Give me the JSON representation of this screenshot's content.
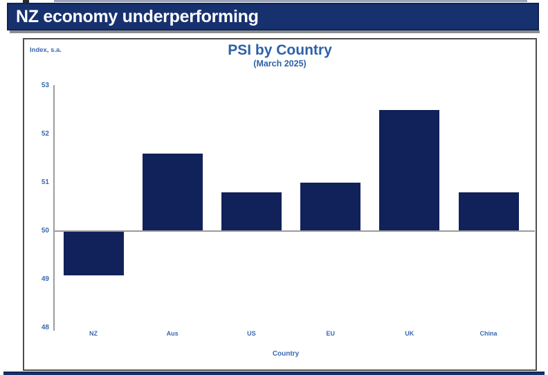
{
  "header": {
    "title": "NZ economy underperforming",
    "bar_color": "#17316f",
    "border_color": "#0f2352",
    "text_color": "#ffffff"
  },
  "chart_data": {
    "type": "bar",
    "title": "PSI by Country",
    "subtitle": "(March 2025)",
    "unit_label": "Index, s.a.",
    "xlabel": "Country",
    "categories": [
      "NZ",
      "Aus",
      "US",
      "EU",
      "UK",
      "China"
    ],
    "values": [
      49.1,
      51.6,
      50.8,
      51.0,
      52.5,
      50.8
    ],
    "baseline": 50,
    "ylim": [
      48,
      53
    ],
    "yticks": [
      53,
      52,
      51,
      50,
      49,
      48
    ],
    "grid": "off",
    "legend": "none",
    "bar_color": "#112159",
    "label_color": "#3a68ae",
    "title_color": "#2e61a6",
    "axis_color": "#9b9b9b"
  }
}
